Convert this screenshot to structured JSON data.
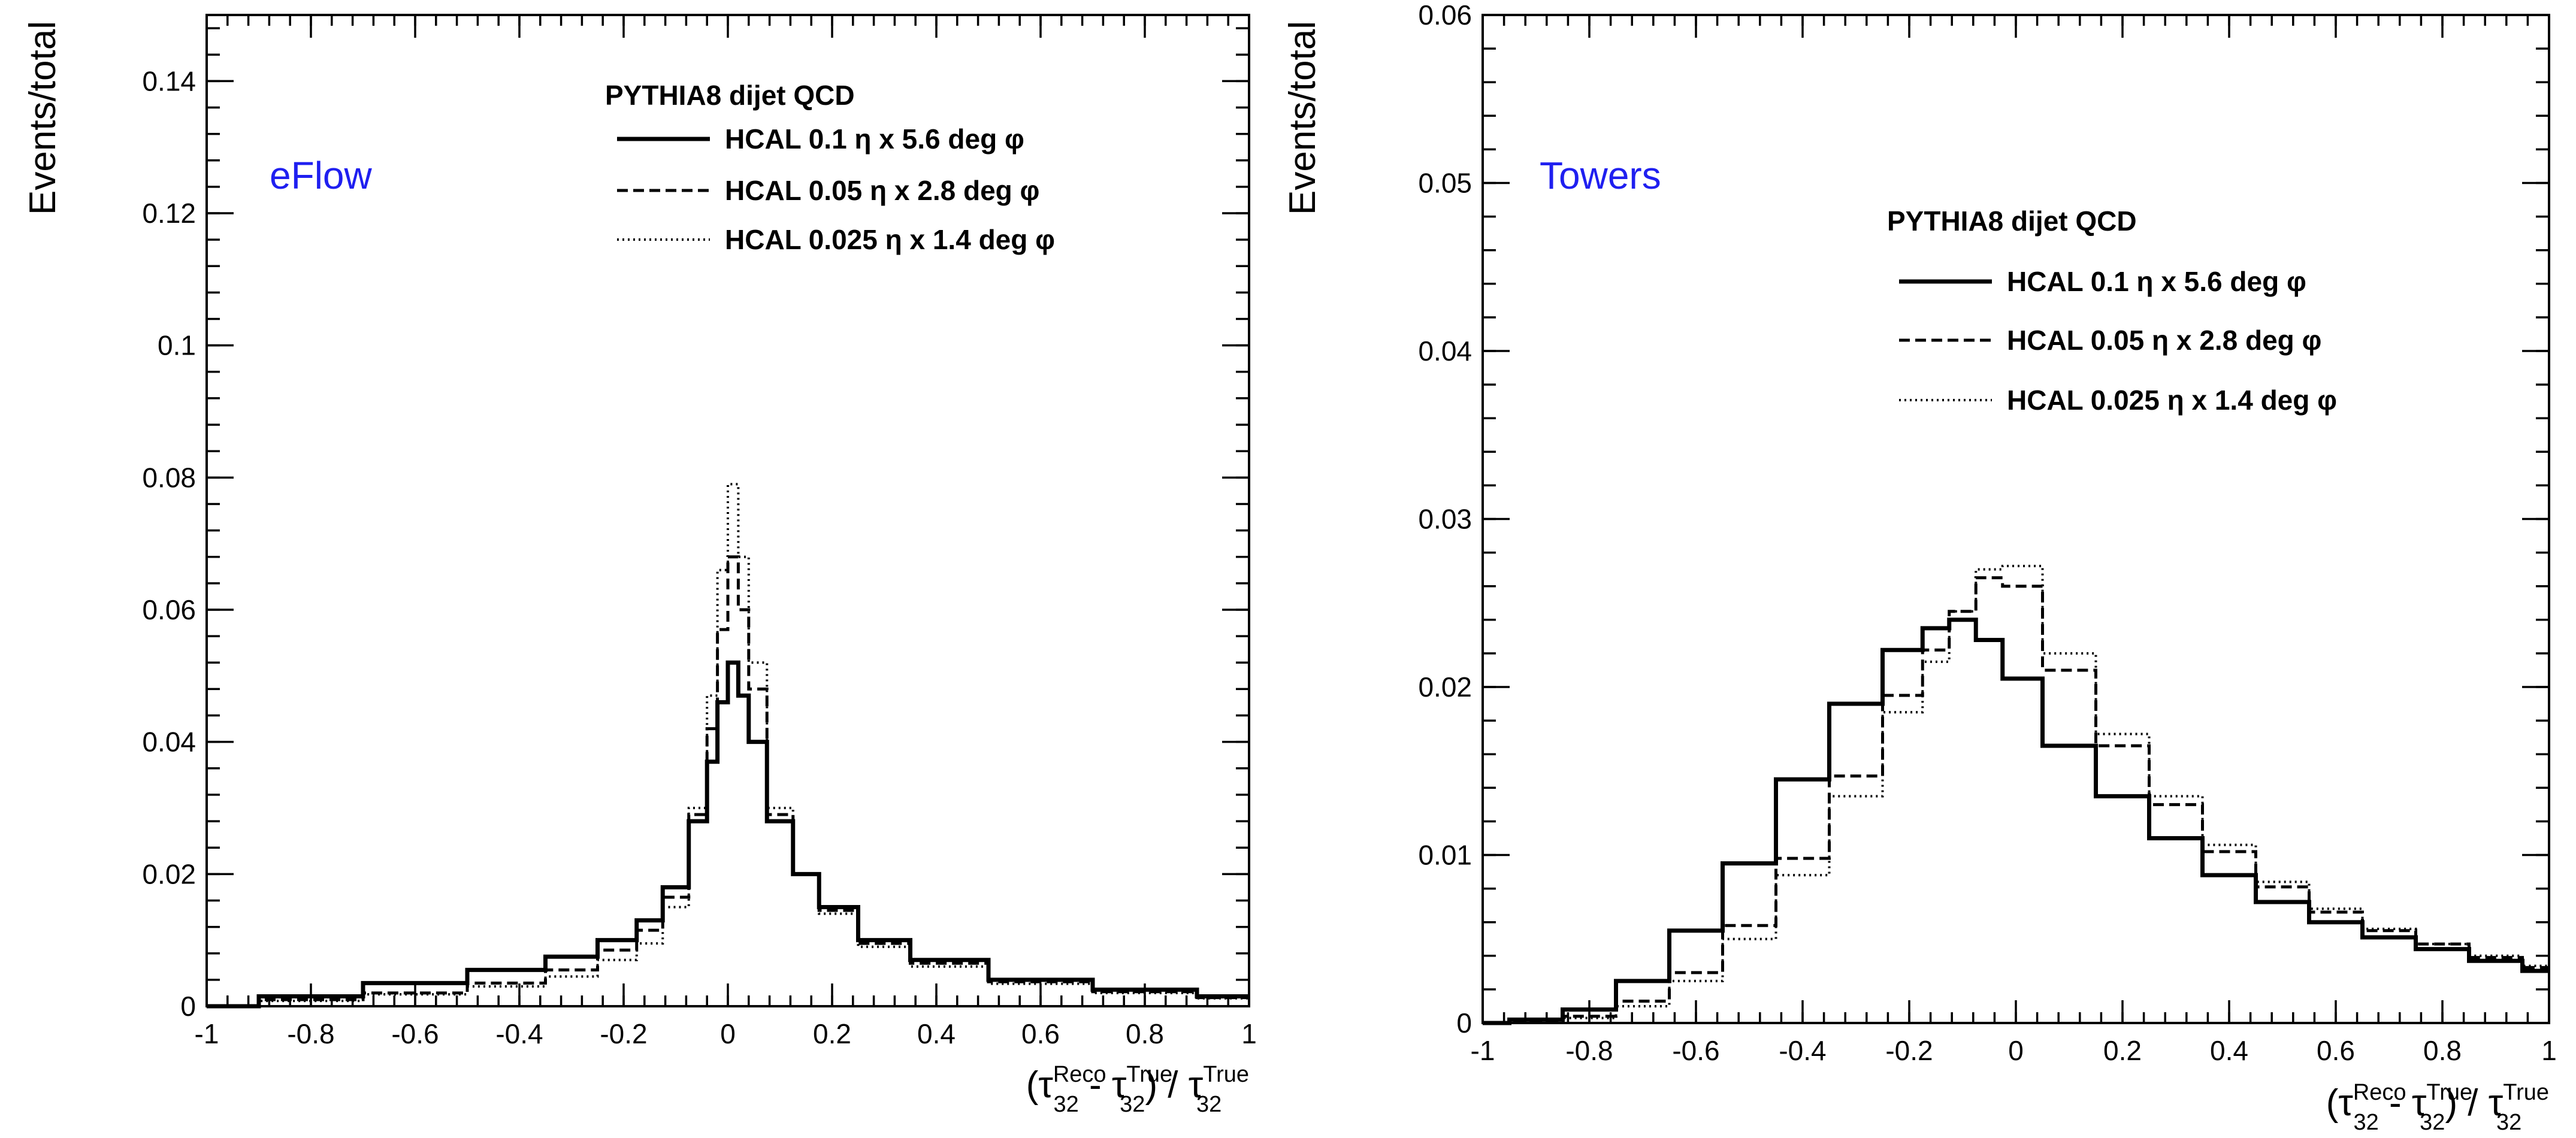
{
  "chart_data": [
    {
      "type": "line",
      "drawstyle": "steps-mid",
      "annotation": "eFlow",
      "annotation_color": "#1f1ff0",
      "legend_title": "PYTHIA8 dijet QCD",
      "legend_placement": "top-right",
      "ylabel": "Events/total",
      "xlabel": "(τ32Reco - τ32True) / τ32True",
      "xlim": [
        -1,
        1
      ],
      "ylim": [
        0,
        0.15
      ],
      "grid": false,
      "x_ticks": [
        "-1",
        "-0.8",
        "-0.6",
        "-0.4",
        "-0.2",
        "0",
        "0.2",
        "0.4",
        "0.6",
        "0.8",
        "1"
      ],
      "y_ticks": [
        "0",
        "0.02",
        "0.04",
        "0.06",
        "0.08",
        "0.1",
        "0.12",
        "0.14"
      ],
      "series": [
        {
          "name": "HCAL 0.1 η x 5.6 deg φ",
          "style": "solid",
          "x": [
            -1,
            -0.8,
            -0.6,
            -0.4,
            -0.3,
            -0.2,
            -0.15,
            -0.1,
            -0.05,
            -0.03,
            -0.01,
            0.01,
            0.03,
            0.05,
            0.1,
            0.15,
            0.2,
            0.3,
            0.4,
            0.6,
            0.8,
            1
          ],
          "y": [
            0,
            0.0015,
            0.0035,
            0.0055,
            0.0075,
            0.01,
            0.013,
            0.018,
            0.028,
            0.037,
            0.046,
            0.052,
            0.047,
            0.04,
            0.028,
            0.02,
            0.015,
            0.01,
            0.007,
            0.004,
            0.0025,
            0.0015
          ]
        },
        {
          "name": "HCAL 0.05 η x 2.8 deg φ",
          "style": "dashed",
          "x": [
            -1,
            -0.8,
            -0.6,
            -0.4,
            -0.3,
            -0.2,
            -0.15,
            -0.1,
            -0.05,
            -0.03,
            -0.01,
            0.01,
            0.03,
            0.05,
            0.1,
            0.15,
            0.2,
            0.3,
            0.4,
            0.6,
            0.8,
            1
          ],
          "y": [
            0,
            0.001,
            0.002,
            0.0035,
            0.0055,
            0.0085,
            0.0115,
            0.0165,
            0.029,
            0.042,
            0.057,
            0.068,
            0.06,
            0.048,
            0.029,
            0.02,
            0.0145,
            0.0095,
            0.0065,
            0.0037,
            0.0022,
            0.0013
          ]
        },
        {
          "name": "HCAL 0.025 η x 1.4 deg φ",
          "style": "dotted",
          "x": [
            -1,
            -0.8,
            -0.6,
            -0.4,
            -0.3,
            -0.2,
            -0.15,
            -0.1,
            -0.05,
            -0.03,
            -0.01,
            0.01,
            0.03,
            0.05,
            0.1,
            0.15,
            0.2,
            0.3,
            0.4,
            0.6,
            0.8,
            1
          ],
          "y": [
            0,
            0.0008,
            0.0018,
            0.003,
            0.0045,
            0.007,
            0.0095,
            0.015,
            0.03,
            0.047,
            0.066,
            0.079,
            0.068,
            0.052,
            0.03,
            0.02,
            0.014,
            0.009,
            0.006,
            0.0034,
            0.002,
            0.0012
          ]
        }
      ]
    },
    {
      "type": "line",
      "drawstyle": "steps-mid",
      "annotation": "Towers",
      "annotation_color": "#1f1ff0",
      "legend_title": "PYTHIA8 dijet QCD",
      "legend_placement": "top-right",
      "ylabel": "Events/total",
      "xlabel": "(τ32Reco - τ32True) / τ32True",
      "xlim": [
        -1,
        1
      ],
      "ylim": [
        0,
        0.06
      ],
      "grid": false,
      "x_ticks": [
        "-1",
        "-0.8",
        "-0.6",
        "-0.4",
        "-0.2",
        "0",
        "0.2",
        "0.4",
        "0.6",
        "0.8",
        "1"
      ],
      "y_ticks": [
        "0",
        "0.01",
        "0.02",
        "0.03",
        "0.04",
        "0.05",
        "0.06"
      ],
      "series": [
        {
          "name": "HCAL 0.1 η x 5.6 deg φ",
          "style": "solid",
          "x": [
            -1,
            -0.9,
            -0.8,
            -0.7,
            -0.6,
            -0.5,
            -0.4,
            -0.3,
            -0.2,
            -0.15,
            -0.1,
            -0.05,
            0,
            0.1,
            0.2,
            0.3,
            0.4,
            0.5,
            0.6,
            0.7,
            0.8,
            0.9,
            1
          ],
          "y": [
            0,
            0.0002,
            0.0008,
            0.0025,
            0.0055,
            0.0095,
            0.0145,
            0.019,
            0.0222,
            0.0235,
            0.024,
            0.0228,
            0.0205,
            0.0165,
            0.0135,
            0.011,
            0.0088,
            0.0072,
            0.006,
            0.0051,
            0.0044,
            0.0037,
            0.0031
          ]
        },
        {
          "name": "HCAL 0.05 η x 2.8 deg φ",
          "style": "dashed",
          "x": [
            -1,
            -0.9,
            -0.8,
            -0.7,
            -0.6,
            -0.5,
            -0.4,
            -0.3,
            -0.2,
            -0.15,
            -0.1,
            -0.05,
            0,
            0.1,
            0.2,
            0.3,
            0.4,
            0.5,
            0.6,
            0.7,
            0.8,
            0.9,
            1
          ],
          "y": [
            0,
            0.0001,
            0.0004,
            0.0013,
            0.003,
            0.0058,
            0.0098,
            0.0147,
            0.0195,
            0.0222,
            0.0245,
            0.0265,
            0.026,
            0.021,
            0.0165,
            0.013,
            0.0102,
            0.0081,
            0.0066,
            0.0055,
            0.0047,
            0.0039,
            0.0033
          ]
        },
        {
          "name": "HCAL 0.025 η x 1.4 deg φ",
          "style": "dotted",
          "x": [
            -1,
            -0.9,
            -0.8,
            -0.7,
            -0.6,
            -0.5,
            -0.4,
            -0.3,
            -0.2,
            -0.15,
            -0.1,
            -0.05,
            0,
            0.1,
            0.2,
            0.3,
            0.4,
            0.5,
            0.6,
            0.7,
            0.8,
            0.9,
            1
          ],
          "y": [
            0,
            0.0001,
            0.0003,
            0.001,
            0.0025,
            0.005,
            0.0088,
            0.0135,
            0.0185,
            0.0215,
            0.0245,
            0.027,
            0.0272,
            0.022,
            0.0172,
            0.0135,
            0.0106,
            0.0084,
            0.0068,
            0.0056,
            0.0047,
            0.004,
            0.0034
          ]
        }
      ]
    }
  ]
}
